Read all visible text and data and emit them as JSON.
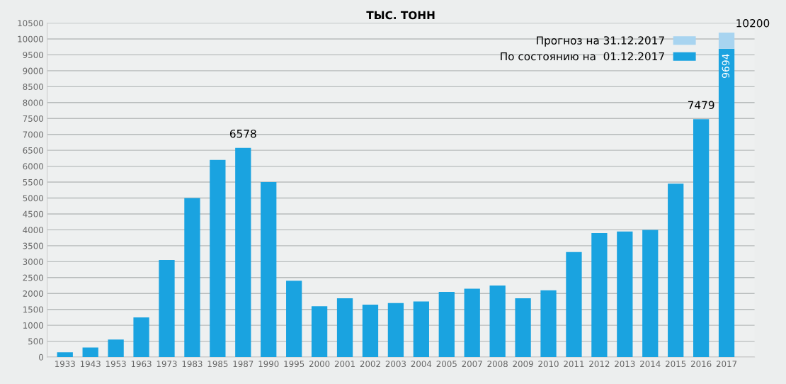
{
  "chart_data": {
    "type": "bar",
    "title": "ТЫС. ТОНН",
    "categories": [
      "1933",
      "1943",
      "1953",
      "1963",
      "1973",
      "1983",
      "1985",
      "1987",
      "1990",
      "1995",
      "2000",
      "2001",
      "2002",
      "2003",
      "2004",
      "2005",
      "2007",
      "2008",
      "2009",
      "2010",
      "2011",
      "2012",
      "2013",
      "2014",
      "2015",
      "2016",
      "2017"
    ],
    "stacked": true,
    "series": [
      {
        "name": "По состоянию на  01.12.2017",
        "color": "#1aa3e0",
        "values": [
          150,
          300,
          550,
          1250,
          3050,
          5000,
          6200,
          6578,
          5500,
          2400,
          1600,
          1850,
          1650,
          1700,
          1750,
          2050,
          2150,
          2250,
          1850,
          2100,
          3300,
          3900,
          3950,
          4000,
          5450,
          7479,
          9694
        ],
        "value_labels": [
          null,
          null,
          null,
          null,
          null,
          null,
          null,
          "6578",
          null,
          null,
          null,
          null,
          null,
          null,
          null,
          null,
          null,
          null,
          null,
          null,
          null,
          null,
          null,
          null,
          null,
          "7479",
          "9694"
        ]
      },
      {
        "name": "Прогноз на 31.12.2017",
        "color": "#a8d4f0",
        "values": [
          null,
          null,
          null,
          null,
          null,
          null,
          null,
          null,
          null,
          null,
          null,
          null,
          null,
          null,
          null,
          null,
          null,
          null,
          null,
          null,
          null,
          null,
          null,
          null,
          null,
          null,
          506
        ]
      }
    ],
    "totals": [
      null,
      null,
      null,
      null,
      null,
      null,
      null,
      null,
      null,
      null,
      null,
      null,
      null,
      null,
      null,
      null,
      null,
      null,
      null,
      null,
      null,
      null,
      null,
      null,
      null,
      null,
      "10200"
    ],
    "ylim": [
      0,
      10500
    ],
    "yticks": [
      0,
      500,
      1000,
      1500,
      2000,
      2500,
      3000,
      3500,
      4000,
      4500,
      5000,
      5500,
      6000,
      6500,
      7000,
      7500,
      8000,
      8500,
      9000,
      9500,
      10000,
      10500
    ],
    "grid": "y",
    "legend": "top right"
  }
}
